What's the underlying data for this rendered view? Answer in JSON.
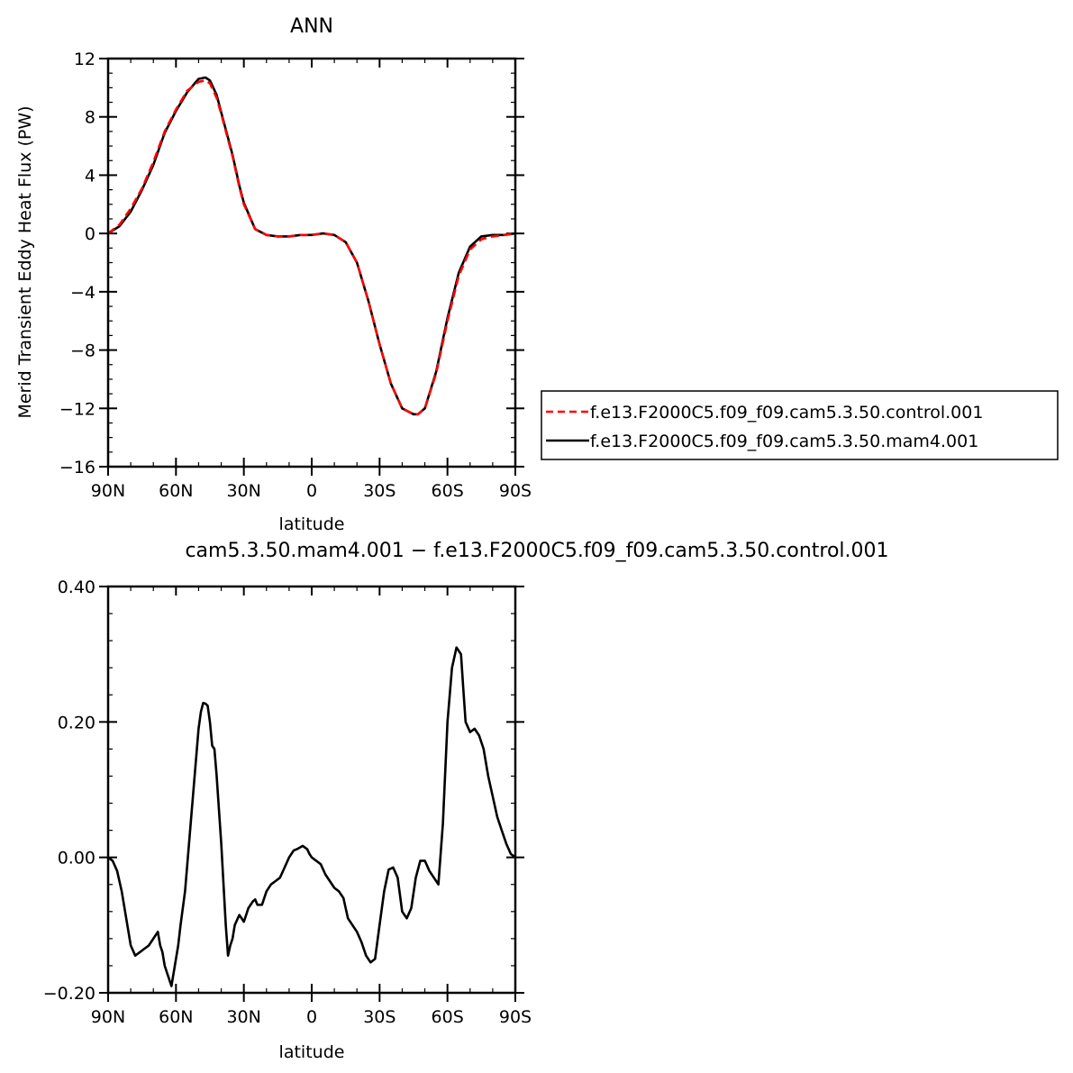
{
  "chart_data": [
    {
      "type": "line",
      "title": "ANN",
      "xlabel": "latitude",
      "ylabel": "Merid Transient Eddy Heat Flux (PW)",
      "xlim": [
        90,
        -90
      ],
      "ylim": [
        -16,
        12
      ],
      "xtick_labels": [
        "90N",
        "60N",
        "30N",
        "0",
        "30S",
        "60S",
        "90S"
      ],
      "ytick_labels": [
        "12",
        "8",
        "4",
        "0",
        "−4",
        "−8",
        "−12",
        "−16"
      ],
      "legend_position": "right",
      "series": [
        {
          "name": "f.e13.F2000C5.f09_f09.cam5.3.50.control.001",
          "color": "#ff0000",
          "dash": "dashed",
          "x": [
            90,
            85,
            80,
            75,
            70,
            65,
            60,
            55,
            50,
            47,
            45,
            42,
            40,
            35,
            32,
            30,
            25,
            20,
            15,
            10,
            5,
            0,
            -5,
            -10,
            -15,
            -20,
            -25,
            -30,
            -35,
            -40,
            -45,
            -47,
            -50,
            -55,
            -60,
            -65,
            -70,
            -75,
            -80,
            -85,
            -90
          ],
          "y": [
            0,
            0.6,
            1.7,
            3.1,
            4.9,
            7.0,
            8.5,
            9.8,
            10.4,
            10.5,
            10.3,
            9.3,
            8.2,
            5.3,
            3.2,
            2.0,
            0.3,
            -0.1,
            -0.2,
            -0.2,
            -0.1,
            -0.1,
            0,
            -0.1,
            -0.6,
            -2.0,
            -4.6,
            -7.6,
            -10.3,
            -12.0,
            -12.4,
            -12.4,
            -12.0,
            -9.6,
            -6.0,
            -2.9,
            -1.1,
            -0.4,
            -0.2,
            -0.1,
            0
          ]
        },
        {
          "name": "f.e13.F2000C5.f09_f09.cam5.3.50.mam4.001",
          "color": "#000000",
          "dash": "solid",
          "x": [
            90,
            85,
            80,
            75,
            70,
            65,
            60,
            55,
            50,
            47,
            45,
            42,
            40,
            35,
            32,
            30,
            25,
            20,
            15,
            10,
            5,
            0,
            -5,
            -10,
            -15,
            -20,
            -25,
            -30,
            -35,
            -40,
            -45,
            -47,
            -50,
            -55,
            -60,
            -65,
            -70,
            -75,
            -80,
            -85,
            -90
          ],
          "y": [
            0,
            0.5,
            1.5,
            3.0,
            4.7,
            6.9,
            8.4,
            9.7,
            10.6,
            10.7,
            10.5,
            9.5,
            8.3,
            5.4,
            3.3,
            2.1,
            0.3,
            -0.1,
            -0.2,
            -0.2,
            -0.1,
            -0.1,
            0,
            -0.1,
            -0.6,
            -2.0,
            -4.6,
            -7.6,
            -10.3,
            -12.0,
            -12.4,
            -12.4,
            -12.0,
            -9.5,
            -5.8,
            -2.7,
            -0.9,
            -0.2,
            -0.1,
            -0.1,
            0
          ]
        }
      ]
    },
    {
      "type": "line",
      "title": "cam5.3.50.mam4.001 − f.e13.F2000C5.f09_f09.cam5.3.50.control.001",
      "xlabel": "latitude",
      "ylabel": "Merid Transient Eddy Heat Flux (PW)",
      "xlim": [
        90,
        -90
      ],
      "ylim": [
        -0.2,
        0.4
      ],
      "xtick_labels": [
        "90N",
        "60N",
        "30N",
        "0",
        "30S",
        "60S",
        "90S"
      ],
      "ytick_labels": [
        "0.40",
        "0.20",
        "0.00",
        "−0.20"
      ],
      "series": [
        {
          "name": "",
          "color": "#000000",
          "dash": "solid",
          "x": [
            90,
            88,
            86,
            84,
            82,
            80,
            78,
            76,
            74,
            72,
            70,
            68,
            67,
            66,
            65,
            64,
            62,
            61,
            60,
            59,
            58,
            56,
            54,
            52,
            50,
            49,
            48,
            47,
            46,
            45,
            44,
            43,
            42,
            40,
            38,
            37,
            36,
            35,
            34,
            32,
            31,
            30,
            28,
            26,
            25,
            24,
            22,
            20,
            18,
            16,
            14,
            12,
            10,
            8,
            6,
            4,
            2,
            1,
            0,
            -2,
            -4,
            -6,
            -8,
            -10,
            -12,
            -14,
            -16,
            -18,
            -20,
            -22,
            -24,
            -26,
            -28,
            -30,
            -32,
            -34,
            -36,
            -38,
            -40,
            -42,
            -44,
            -46,
            -48,
            -50,
            -52,
            -54,
            -56,
            -58,
            -60,
            -62,
            -64,
            -66,
            -67,
            -68,
            -70,
            -72,
            -74,
            -76,
            -78,
            -80,
            -82,
            -84,
            -86,
            -88,
            -90
          ],
          "y": [
            0,
            -0.005,
            -0.02,
            -0.05,
            -0.09,
            -0.13,
            -0.145,
            -0.14,
            -0.135,
            -0.13,
            -0.12,
            -0.11,
            -0.13,
            -0.14,
            -0.16,
            -0.17,
            -0.19,
            -0.17,
            -0.15,
            -0.13,
            -0.1,
            -0.05,
            0.03,
            0.11,
            0.19,
            0.215,
            0.228,
            0.227,
            0.224,
            0.2,
            0.165,
            0.16,
            0.12,
            0.02,
            -0.1,
            -0.145,
            -0.13,
            -0.12,
            -0.1,
            -0.085,
            -0.09,
            -0.095,
            -0.075,
            -0.065,
            -0.062,
            -0.07,
            -0.07,
            -0.05,
            -0.04,
            -0.035,
            -0.03,
            -0.015,
            0.0,
            0.01,
            0.013,
            0.017,
            0.012,
            0.005,
            0.0,
            -0.005,
            -0.01,
            -0.025,
            -0.035,
            -0.045,
            -0.05,
            -0.06,
            -0.09,
            -0.1,
            -0.11,
            -0.125,
            -0.145,
            -0.155,
            -0.15,
            -0.1,
            -0.05,
            -0.018,
            -0.015,
            -0.03,
            -0.08,
            -0.09,
            -0.075,
            -0.03,
            -0.005,
            -0.005,
            -0.02,
            -0.03,
            -0.04,
            0.05,
            0.2,
            0.28,
            0.31,
            0.3,
            0.25,
            0.2,
            0.185,
            0.19,
            0.18,
            0.16,
            0.12,
            0.09,
            0.06,
            0.04,
            0.02,
            0.005,
            0
          ]
        }
      ]
    }
  ]
}
